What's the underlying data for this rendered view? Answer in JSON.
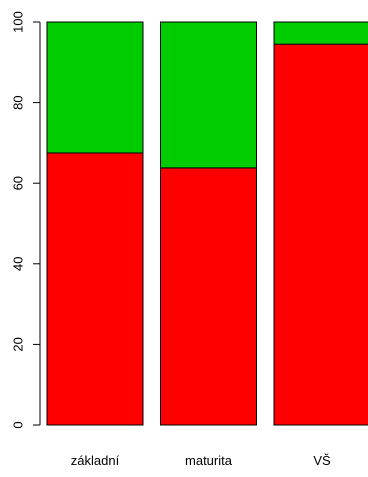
{
  "chart_data": {
    "type": "bar",
    "stacked": true,
    "categories": [
      "základní",
      "maturita",
      "VŠ"
    ],
    "series": [
      {
        "values": [
          67.5,
          63.8,
          94.5
        ],
        "color": "#ff0000"
      },
      {
        "values": [
          32.5,
          36.2,
          5.5
        ],
        "color": "#00cc00"
      }
    ],
    "yticks": [
      "0",
      "20",
      "40",
      "60",
      "80",
      "100"
    ],
    "ylim": [
      0,
      100
    ],
    "grid": false,
    "legend": "none"
  }
}
